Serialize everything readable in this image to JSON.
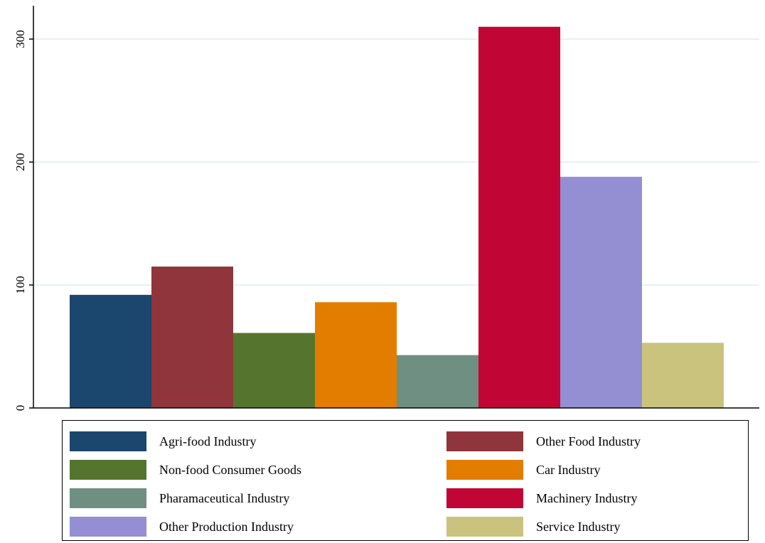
{
  "chart_data": {
    "type": "bar",
    "categories": [
      "Agri-food Industry",
      "Other Food Industry",
      "Non-food Consumer Goods",
      "Car Industry",
      "Pharamaceutical Industry",
      "Machinery Industry",
      "Other Production Industry",
      "Service Industry"
    ],
    "values": [
      92,
      115,
      61,
      86,
      43,
      310,
      188,
      53
    ],
    "colors": [
      "#1b466e",
      "#90353b",
      "#55752f",
      "#e27d00",
      "#6e8f81",
      "#c10534",
      "#938fd2",
      "#cac37e"
    ],
    "title": "",
    "xlabel": "",
    "ylabel": "",
    "ylim": [
      0,
      330
    ],
    "yticks": [
      "0",
      "100",
      "200",
      "300"
    ],
    "grid": true,
    "legend_position": "bottom",
    "legend_columns": 2
  }
}
